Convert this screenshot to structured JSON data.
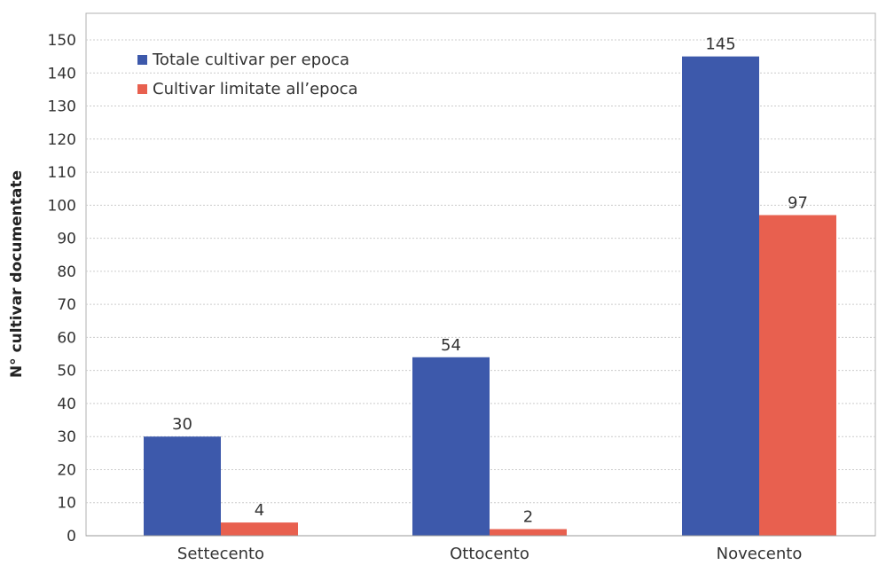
{
  "chart_data": {
    "type": "bar",
    "ylabel": "N° cultivar documentate",
    "categories": [
      "Settecento",
      "Ottocento",
      "Novecento"
    ],
    "ylim": [
      0,
      150
    ],
    "yticks": [
      0,
      10,
      20,
      30,
      40,
      50,
      60,
      70,
      80,
      90,
      100,
      110,
      120,
      130,
      140,
      150
    ],
    "grid": true,
    "legend_position": "top-left",
    "series": [
      {
        "name": "Totale cultivar per epoca",
        "color": "#3d59ab",
        "values": [
          30,
          54,
          145
        ]
      },
      {
        "name": "Cultivar limitate all’epoca",
        "color": "#e8604f",
        "values": [
          4,
          2,
          97
        ]
      }
    ]
  }
}
